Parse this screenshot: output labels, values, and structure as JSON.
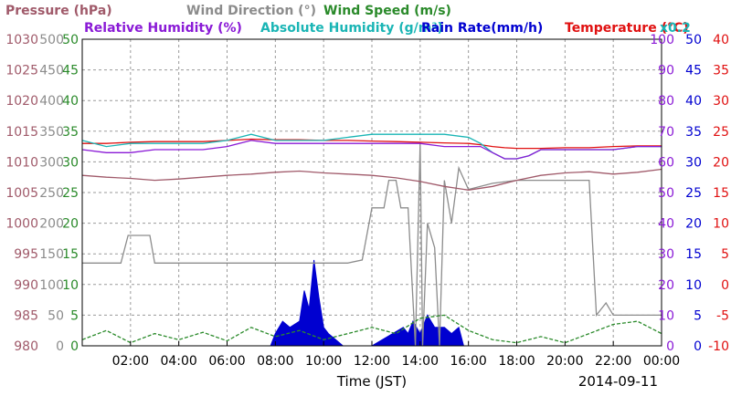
{
  "chart_data": {
    "type": "line",
    "date": "2014-09-11",
    "xlabel": "Time (JST)",
    "x_ticks": [
      "02:00",
      "04:00",
      "06:00",
      "08:00",
      "10:00",
      "12:00",
      "14:00",
      "16:00",
      "18:00",
      "20:00",
      "22:00",
      "00:00"
    ],
    "x_range_hours": [
      0,
      24
    ],
    "legend": {
      "row1": [
        {
          "text": "Pressure (hPa)",
          "color": "#a05a6a"
        },
        {
          "text": "Wind Direction (°)",
          "color": "#8c8c8c"
        },
        {
          "text": "Wind Speed (m/s)",
          "color": "#2a8a2a"
        }
      ],
      "row2": [
        {
          "text": "Relative Humidity (%)",
          "color": "#8a1ad6"
        },
        {
          "text": "Absolute Humidity (g/m³)",
          "color": "#1ab5b5"
        },
        {
          "text": "Rain Rate(mm/h)",
          "color": "#0000d0"
        },
        {
          "text": "Temperature (°C)",
          "color": "#e01010"
        },
        {
          "text": "x0.2",
          "color": "#1ab5b5"
        }
      ]
    },
    "axes": [
      {
        "name": "Pressure (hPa)",
        "side": "left",
        "color": "#a05a6a",
        "ticks": [
          "1030",
          "1025",
          "1020",
          "1015",
          "1010",
          "1005",
          "1000",
          "995",
          "990",
          "985",
          "980"
        ],
        "range": [
          980,
          1030
        ]
      },
      {
        "name": "Wind Direction (°)",
        "side": "left",
        "color": "#8c8c8c",
        "ticks": [
          "500",
          "450",
          "400",
          "350",
          "300",
          "250",
          "200",
          "150",
          "100",
          "50",
          "0"
        ],
        "range": [
          0,
          500
        ]
      },
      {
        "name": "Wind Speed (m/s)",
        "side": "left",
        "color": "#2a8a2a",
        "ticks": [
          "50",
          "45",
          "40",
          "35",
          "30",
          "25",
          "20",
          "15",
          "10",
          "5",
          "0"
        ],
        "range": [
          0,
          50
        ]
      },
      {
        "name": "Relative Humidity (%)",
        "side": "right",
        "color": "#8a1ad6",
        "ticks": [
          "100",
          "90",
          "80",
          "70",
          "60",
          "50",
          "40",
          "30",
          "20",
          "10",
          "0"
        ],
        "range": [
          0,
          100
        ]
      },
      {
        "name": "Rain Rate(mm/h)",
        "side": "right",
        "color": "#0000d0",
        "ticks": [
          "50",
          "45",
          "40",
          "35",
          "30",
          "25",
          "20",
          "15",
          "10",
          "5",
          "0"
        ],
        "range": [
          0,
          50
        ]
      },
      {
        "name": "Temperature (°C)",
        "side": "right",
        "color": "#e01010",
        "ticks": [
          "40",
          "35",
          "30",
          "25",
          "20",
          "15",
          "10",
          "5",
          "0",
          "-5",
          "-10"
        ],
        "range": [
          -10,
          40
        ]
      }
    ],
    "grid": true,
    "series": [
      {
        "name": "Pressure (hPa)",
        "axis": 0,
        "color": "#a05a6a",
        "x": [
          0,
          1,
          2,
          3,
          4,
          5,
          6,
          7,
          8,
          9,
          10,
          11,
          12,
          13,
          14,
          15,
          16,
          17,
          18,
          19,
          20,
          21,
          22,
          23,
          24
        ],
        "y": [
          1007.8,
          1007.5,
          1007.3,
          1007.0,
          1007.2,
          1007.5,
          1007.8,
          1008.0,
          1008.3,
          1008.5,
          1008.2,
          1008.0,
          1007.8,
          1007.4,
          1006.8,
          1006.0,
          1005.4,
          1006.0,
          1007.0,
          1007.8,
          1008.2,
          1008.4,
          1008.0,
          1008.3,
          1008.8
        ]
      },
      {
        "name": "Wind Direction (°)",
        "axis": 1,
        "color": "#8c8c8c",
        "x": [
          0,
          1.6,
          1.9,
          2.8,
          3.0,
          8.0,
          9.0,
          10.5,
          11.0,
          11.6,
          12.0,
          12.5,
          12.7,
          13.0,
          13.2,
          13.5,
          13.8,
          14.0,
          14.1,
          14.3,
          14.6,
          14.8,
          15.0,
          15.3,
          15.6,
          16.0,
          17.0,
          18.0,
          19.0,
          20.0,
          21.0,
          21.3,
          21.7,
          22.0,
          22.5,
          23.0,
          23.5,
          24.0
        ],
        "y": [
          135,
          135,
          180,
          180,
          135,
          135,
          135,
          135,
          135,
          140,
          225,
          225,
          270,
          270,
          225,
          225,
          0,
          330,
          0,
          200,
          160,
          0,
          270,
          200,
          290,
          255,
          265,
          270,
          270,
          270,
          270,
          50,
          70,
          50,
          50,
          50,
          50,
          50
        ]
      },
      {
        "name": "Wind Speed (m/s)",
        "axis": 2,
        "color": "#2a8a2a",
        "x": [
          0,
          1,
          2,
          3,
          4,
          5,
          6,
          7,
          8,
          9,
          10,
          11,
          12,
          13,
          14,
          15,
          16,
          17,
          18,
          19,
          20,
          21,
          22,
          23,
          24
        ],
        "y": [
          1.0,
          2.5,
          0.5,
          2.0,
          1.0,
          2.2,
          0.8,
          3.0,
          1.5,
          2.5,
          1.0,
          2.0,
          3.0,
          2.0,
          4.5,
          5.0,
          2.5,
          1.0,
          0.5,
          1.5,
          0.5,
          2.0,
          3.5,
          4.0,
          2.0
        ]
      },
      {
        "name": "Relative Humidity (%)",
        "axis": 3,
        "color": "#8a1ad6",
        "x": [
          0,
          1,
          2,
          3,
          4,
          5,
          6,
          7,
          8,
          9,
          10,
          11,
          12,
          13,
          14,
          15,
          16,
          16.5,
          17,
          17.5,
          18,
          18.5,
          19,
          20,
          21,
          22,
          23,
          24
        ],
        "y": [
          64,
          63,
          63,
          64,
          64,
          64,
          65,
          67,
          66,
          66,
          66,
          66,
          66,
          66,
          66,
          65,
          65,
          65,
          63,
          61,
          61,
          62,
          64,
          64,
          64,
          64,
          65,
          65
        ]
      },
      {
        "name": "Absolute Humidity (g/m³)",
        "axis": 3,
        "color": "#1ab5b5",
        "x": [
          0,
          1,
          2,
          3,
          4,
          5,
          6,
          7,
          8,
          9,
          10,
          11,
          12,
          13,
          14,
          15,
          16,
          16.5,
          17,
          17.5,
          18,
          18.5,
          19,
          20,
          21,
          22,
          23,
          24
        ],
        "y": [
          67,
          65,
          66,
          66,
          66,
          66,
          67,
          69,
          67,
          67,
          67,
          68,
          69,
          69,
          69,
          69,
          68,
          66,
          63,
          61,
          61,
          62,
          64,
          64,
          64,
          64,
          65,
          65
        ]
      },
      {
        "name": "Rain Rate(mm/h)",
        "axis": 4,
        "color": "#0000d0",
        "fill": true,
        "x": [
          7.8,
          8.0,
          8.3,
          8.6,
          9.0,
          9.2,
          9.4,
          9.6,
          9.8,
          10.0,
          10.2,
          10.5,
          10.8,
          11.2,
          11.6,
          12.0,
          13.3,
          13.5,
          13.7,
          14.0,
          14.3,
          14.6,
          15.0,
          15.3,
          15.6,
          15.8
        ],
        "y": [
          0,
          2,
          4,
          3,
          4,
          9,
          6,
          14,
          8,
          3,
          2,
          1,
          0,
          0,
          0,
          0,
          3,
          2,
          4,
          2,
          5,
          3,
          3,
          2,
          3,
          0
        ]
      },
      {
        "name": "Temperature (°C)",
        "axis": 5,
        "color": "#e01010",
        "x": [
          0,
          1,
          2,
          3,
          4,
          5,
          6,
          7,
          8,
          9,
          10,
          11,
          12,
          13,
          14,
          15,
          16,
          16.5,
          17,
          17.5,
          18,
          19,
          20,
          21,
          22,
          23,
          24
        ],
        "y": [
          23.0,
          23.0,
          23.2,
          23.3,
          23.3,
          23.3,
          23.5,
          23.7,
          23.6,
          23.6,
          23.5,
          23.5,
          23.4,
          23.3,
          23.2,
          23.1,
          23.0,
          22.8,
          22.5,
          22.3,
          22.2,
          22.2,
          22.3,
          22.3,
          22.5,
          22.6,
          22.6
        ]
      }
    ]
  }
}
